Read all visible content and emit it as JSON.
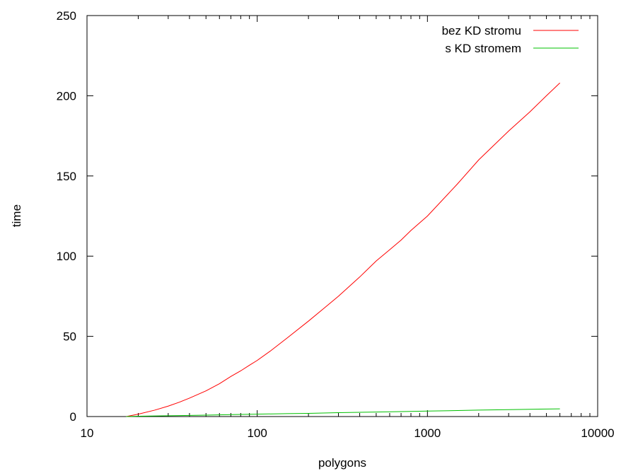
{
  "chart_data": {
    "type": "line",
    "xlabel": "polygons",
    "ylabel": "time",
    "xscale": "log",
    "xlim": [
      10,
      10000
    ],
    "ylim": [
      0,
      250
    ],
    "grid": false,
    "legend_position": "top-right",
    "x_ticks": [
      {
        "value": 10,
        "label": "10"
      },
      {
        "value": 100,
        "label": "100"
      },
      {
        "value": 1000,
        "label": "1000"
      },
      {
        "value": 10000,
        "label": "10000"
      }
    ],
    "y_ticks": [
      {
        "value": 0,
        "label": "0"
      },
      {
        "value": 50,
        "label": "50"
      },
      {
        "value": 100,
        "label": "100"
      },
      {
        "value": 150,
        "label": "150"
      },
      {
        "value": 200,
        "label": "200"
      },
      {
        "value": 250,
        "label": "250"
      }
    ],
    "series": [
      {
        "name": "bez KD stromu",
        "color": "#ff0000",
        "x": [
          17,
          20,
          25,
          30,
          35,
          40,
          50,
          60,
          70,
          80,
          90,
          100,
          120,
          150,
          200,
          250,
          300,
          400,
          500,
          600,
          700,
          800,
          1000,
          1500,
          2000,
          3000,
          4000,
          5000,
          6000
        ],
        "y": [
          0,
          1.5,
          4,
          6.5,
          9,
          11.5,
          16,
          20.5,
          25,
          28.5,
          32,
          35,
          41,
          49,
          59.5,
          68,
          75,
          87,
          97,
          104,
          110,
          116,
          125,
          145,
          160,
          178,
          190,
          200,
          208
        ]
      },
      {
        "name": "s KD stromem",
        "color": "#00c000",
        "x": [
          17,
          20,
          30,
          50,
          70,
          100,
          150,
          200,
          300,
          500,
          700,
          1000,
          2000,
          3000,
          4000,
          5000,
          6000
        ],
        "y": [
          0,
          0.2,
          0.5,
          0.9,
          1.2,
          1.5,
          1.8,
          2.0,
          2.4,
          2.8,
          3.1,
          3.4,
          4.0,
          4.3,
          4.5,
          4.7,
          4.8
        ]
      }
    ]
  }
}
